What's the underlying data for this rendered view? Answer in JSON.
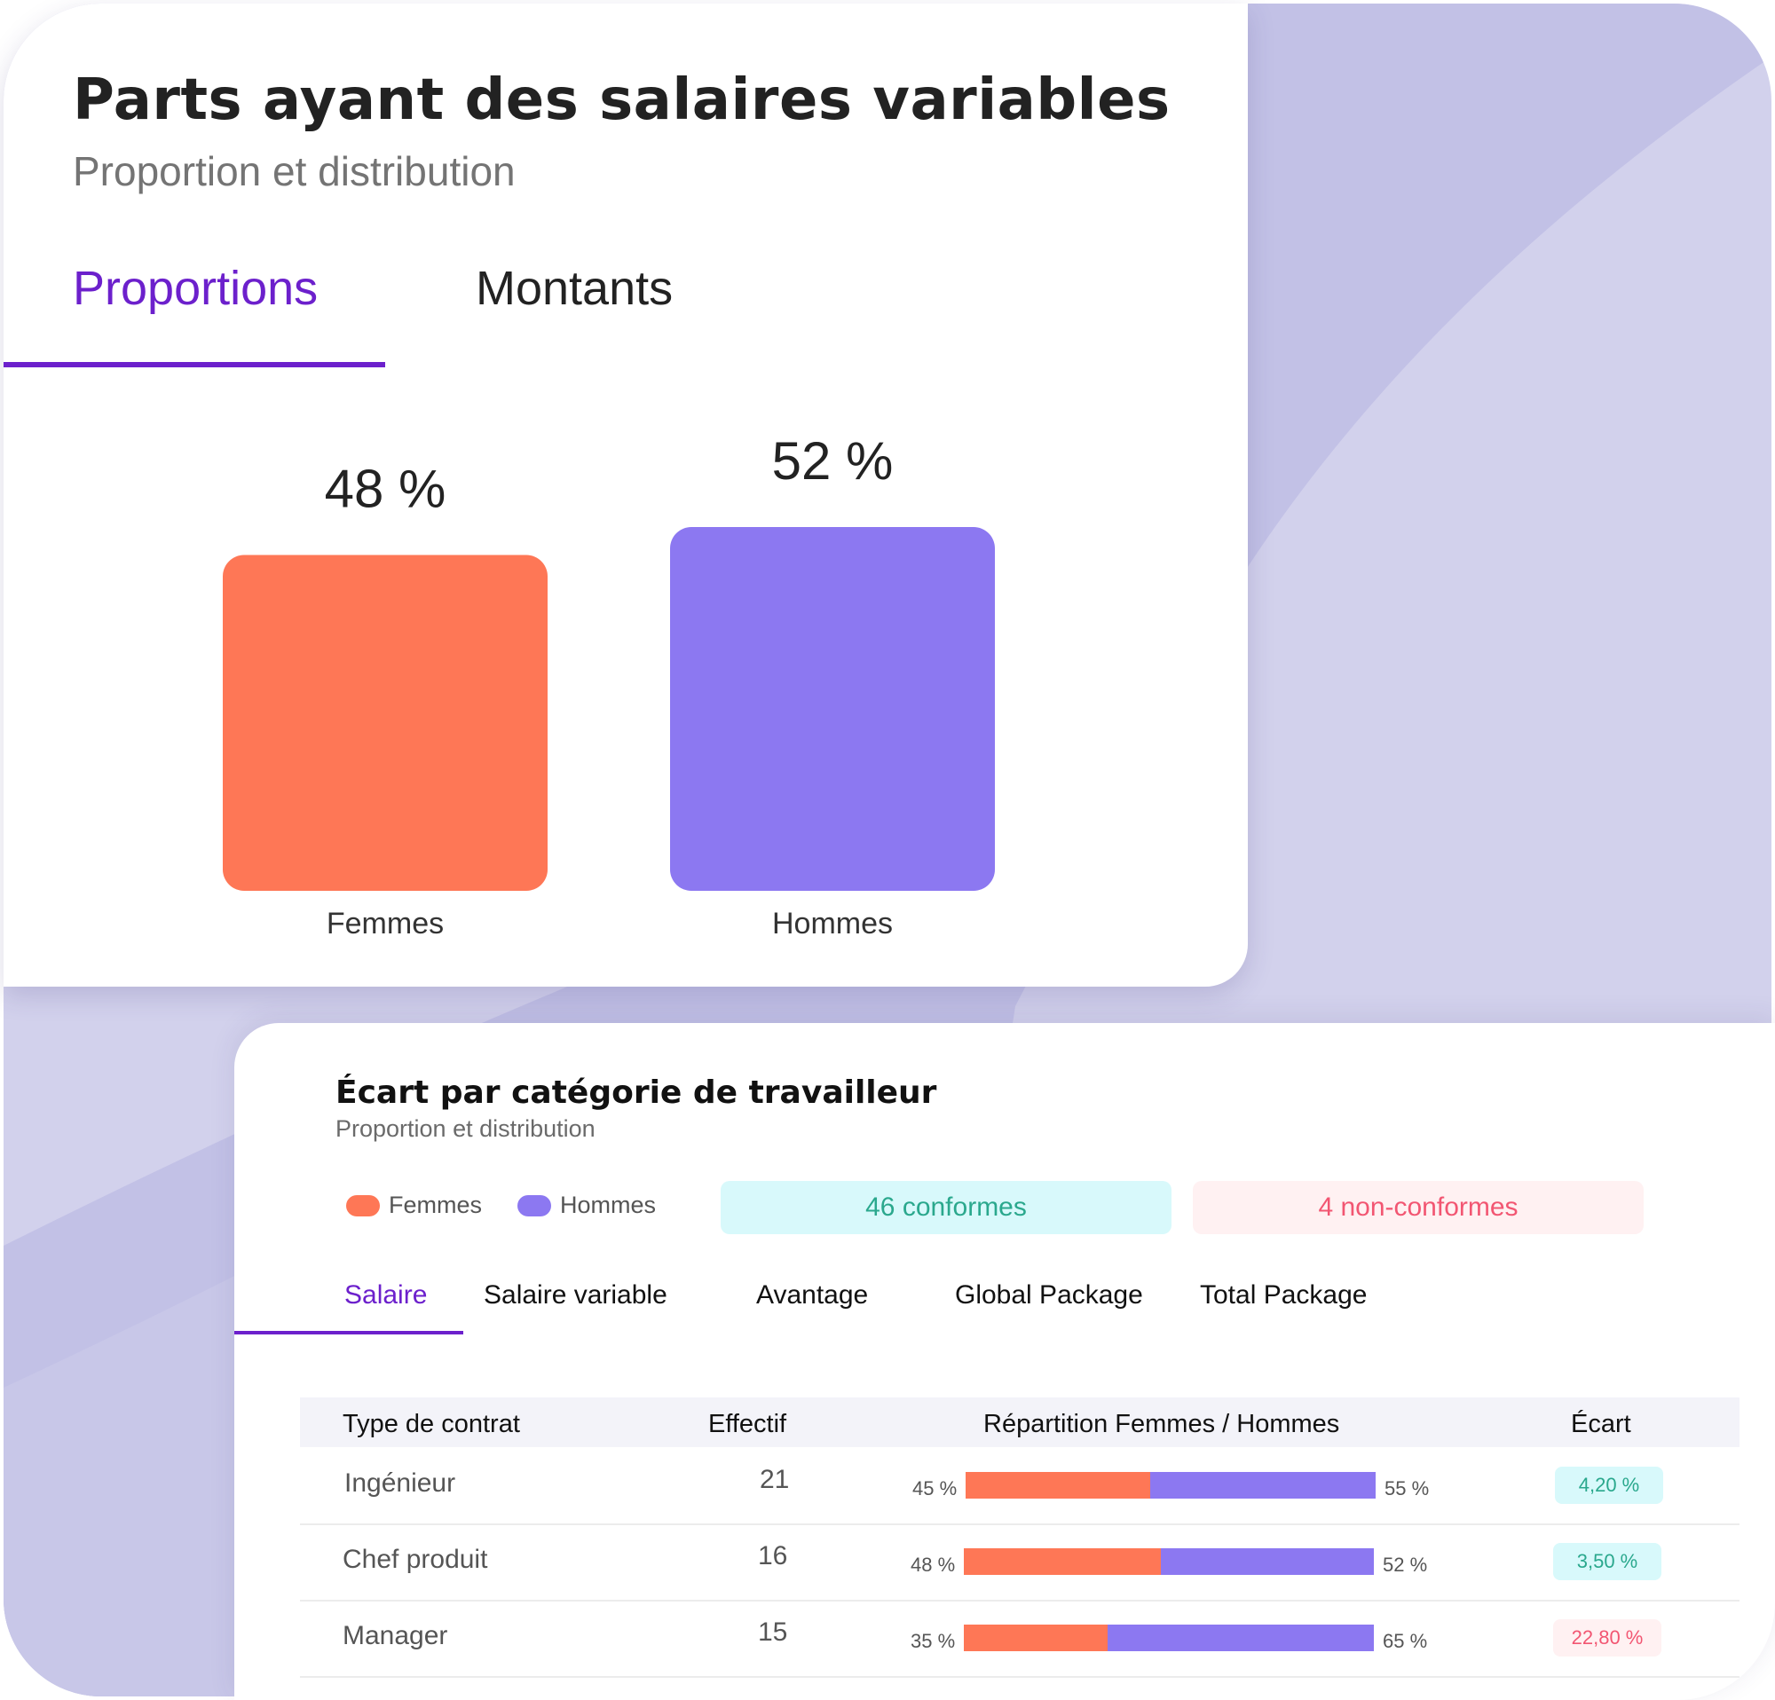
{
  "colors": {
    "femmes": "#fe7756",
    "hommes": "#8c78f1",
    "accent": "#6c20cc",
    "conforme_bg": "#d8f9fb",
    "conforme_text": "#2aa88d",
    "nonconforme_bg": "#fff1f2",
    "nonconforme_text": "#f25672"
  },
  "card1": {
    "title": "Parts ayant des salaires variables",
    "subtitle": "Proportion et distribution",
    "tabs": [
      {
        "label": "Proportions",
        "active": true
      },
      {
        "label": "Montants",
        "active": false
      }
    ]
  },
  "chart_data": {
    "type": "bar",
    "categories": [
      "Femmes",
      "Hommes"
    ],
    "values": [
      48,
      52
    ],
    "value_labels": [
      "48 %",
      "52 %"
    ],
    "colors": [
      "#fe7756",
      "#8c78f1"
    ],
    "title": "",
    "xlabel": "",
    "ylabel": "",
    "grid": false
  },
  "card2": {
    "title": "Écart par catégorie de travailleur",
    "subtitle": "Proportion et distribution",
    "legend": [
      {
        "label": "Femmes",
        "color": "#fe7756"
      },
      {
        "label": "Hommes",
        "color": "#8c78f1"
      }
    ],
    "badges": {
      "conformes": "46 conformes",
      "non_conformes": "4 non-conformes"
    },
    "tabs": [
      {
        "label": "Salaire",
        "active": true
      },
      {
        "label": "Salaire variable",
        "active": false
      },
      {
        "label": "Avantage",
        "active": false
      },
      {
        "label": "Global Package",
        "active": false
      },
      {
        "label": "Total Package",
        "active": false
      }
    ],
    "table": {
      "headers": [
        "Type de contrat",
        "Effectif",
        "Répartition Femmes / Hommes",
        "Écart"
      ],
      "rows": [
        {
          "type": "Ingénieur",
          "effectif": "21",
          "femmes": 45,
          "hommes": 55,
          "femmes_label": "45 %",
          "hommes_label": "55 %",
          "ecart": "4,20 %",
          "conforme": true
        },
        {
          "type": "Chef produit",
          "effectif": "16",
          "femmes": 48,
          "hommes": 52,
          "femmes_label": "48 %",
          "hommes_label": "52 %",
          "ecart": "3,50 %",
          "conforme": true
        },
        {
          "type": "Manager",
          "effectif": "15",
          "femmes": 35,
          "hommes": 65,
          "femmes_label": "35 %",
          "hommes_label": "65 %",
          "ecart": "22,80 %",
          "conforme": false
        }
      ]
    }
  }
}
